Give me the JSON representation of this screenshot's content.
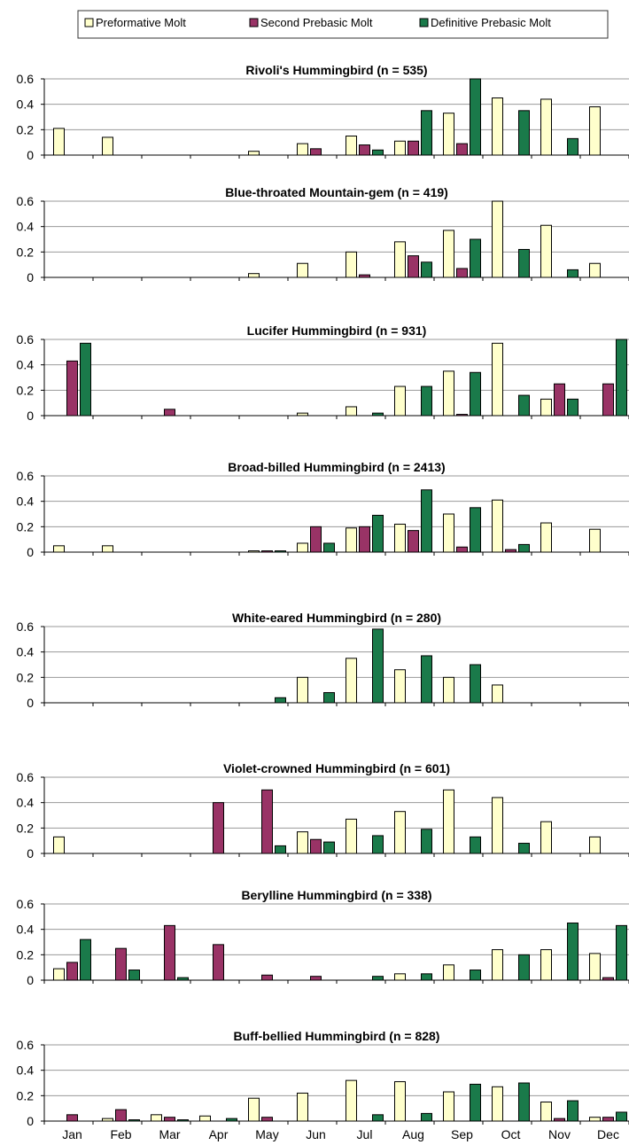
{
  "legend": {
    "items": [
      {
        "label": "Preformative Molt",
        "color": "#ffffcc"
      },
      {
        "label": "Second Prebasic Molt",
        "color": "#993366"
      },
      {
        "label": "Definitive Prebasic Molt",
        "color": "#1a7a4a"
      }
    ]
  },
  "chart_data": [
    {
      "type": "bar",
      "title": "Rivoli's Hummingbird (n = 535)",
      "categories": [
        "Jan",
        "Feb",
        "Mar",
        "Apr",
        "May",
        "Jun",
        "Jul",
        "Aug",
        "Sep",
        "Oct",
        "Nov",
        "Dec"
      ],
      "ylim": [
        0,
        0.6
      ],
      "yticks": [
        "0",
        "0.2",
        "0.4",
        "0.6"
      ],
      "series": [
        {
          "name": "Preformative Molt",
          "values": [
            0.21,
            0.14,
            0,
            0,
            0.03,
            0.09,
            0.15,
            0.11,
            0.33,
            0.45,
            0.44,
            0.38
          ]
        },
        {
          "name": "Second Prebasic Molt",
          "values": [
            0,
            0,
            0,
            0,
            0,
            0.05,
            0.08,
            0.11,
            0.09,
            0,
            0,
            0
          ]
        },
        {
          "name": "Definitive Prebasic Molt",
          "values": [
            0,
            0,
            0,
            0,
            0,
            0,
            0.04,
            0.35,
            0.6,
            0.35,
            0.13,
            0
          ]
        }
      ]
    },
    {
      "type": "bar",
      "title": "Blue-throated Mountain-gem (n = 419)",
      "categories": [
        "Jan",
        "Feb",
        "Mar",
        "Apr",
        "May",
        "Jun",
        "Jul",
        "Aug",
        "Sep",
        "Oct",
        "Nov",
        "Dec"
      ],
      "ylim": [
        0,
        0.6
      ],
      "yticks": [
        "0",
        "0.2",
        "0.4",
        "0.6"
      ],
      "series": [
        {
          "name": "Preformative Molt",
          "values": [
            0,
            0,
            0,
            0,
            0.03,
            0.11,
            0.2,
            0.28,
            0.37,
            0.6,
            0.41,
            0.11
          ]
        },
        {
          "name": "Second Prebasic Molt",
          "values": [
            0,
            0,
            0,
            0,
            0,
            0,
            0.02,
            0.17,
            0.07,
            0,
            0,
            0
          ]
        },
        {
          "name": "Definitive Prebasic Molt",
          "values": [
            0,
            0,
            0,
            0,
            0,
            0,
            0,
            0.12,
            0.3,
            0.22,
            0.06,
            0
          ]
        }
      ]
    },
    {
      "type": "bar",
      "title": "Lucifer Hummingbird (n = 931)",
      "categories": [
        "Jan",
        "Feb",
        "Mar",
        "Apr",
        "May",
        "Jun",
        "Jul",
        "Aug",
        "Sep",
        "Oct",
        "Nov",
        "Dec"
      ],
      "ylim": [
        0,
        0.6
      ],
      "yticks": [
        "0",
        "0.2",
        "0.4",
        "0.6"
      ],
      "series": [
        {
          "name": "Preformative Molt",
          "values": [
            0,
            0,
            0,
            0,
            0,
            0.02,
            0.07,
            0.23,
            0.35,
            0.57,
            0.13,
            0
          ]
        },
        {
          "name": "Second Prebasic Molt",
          "values": [
            0.43,
            0,
            0.05,
            0,
            0,
            0,
            0,
            0,
            0.01,
            0,
            0.25,
            0.25
          ]
        },
        {
          "name": "Definitive Prebasic Molt",
          "values": [
            0.57,
            0,
            0,
            0,
            0,
            0,
            0.02,
            0.23,
            0.34,
            0.16,
            0.13,
            0.6
          ]
        }
      ]
    },
    {
      "type": "bar",
      "title": "Broad-billed Hummingbird (n = 2413)",
      "categories": [
        "Jan",
        "Feb",
        "Mar",
        "Apr",
        "May",
        "Jun",
        "Jul",
        "Aug",
        "Sep",
        "Oct",
        "Nov",
        "Dec"
      ],
      "ylim": [
        0,
        0.6
      ],
      "yticks": [
        "0",
        "0.2",
        "0.4",
        "0.6"
      ],
      "series": [
        {
          "name": "Preformative Molt",
          "values": [
            0.05,
            0.05,
            0,
            0,
            0.01,
            0.07,
            0.19,
            0.22,
            0.3,
            0.41,
            0.23,
            0.18
          ]
        },
        {
          "name": "Second Prebasic Molt",
          "values": [
            0,
            0,
            0,
            0,
            0.01,
            0.2,
            0.2,
            0.17,
            0.04,
            0.02,
            0,
            0
          ]
        },
        {
          "name": "Definitive Prebasic Molt",
          "values": [
            0,
            0,
            0,
            0,
            0.01,
            0.07,
            0.29,
            0.49,
            0.35,
            0.06,
            0,
            0
          ]
        }
      ]
    },
    {
      "type": "bar",
      "title": "White-eared Hummingbird (n = 280)",
      "categories": [
        "Jan",
        "Feb",
        "Mar",
        "Apr",
        "May",
        "Jun",
        "Jul",
        "Aug",
        "Sep",
        "Oct",
        "Nov",
        "Dec"
      ],
      "ylim": [
        0,
        0.6
      ],
      "yticks": [
        "0",
        "0.2",
        "0.4",
        "0.6"
      ],
      "series": [
        {
          "name": "Preformative Molt",
          "values": [
            0,
            0,
            0,
            0,
            0,
            0.2,
            0.35,
            0.26,
            0.2,
            0.14,
            0,
            0
          ]
        },
        {
          "name": "Second Prebasic Molt",
          "values": [
            0,
            0,
            0,
            0,
            0,
            0,
            0,
            0,
            0,
            0,
            0,
            0
          ]
        },
        {
          "name": "Definitive Prebasic Molt",
          "values": [
            0,
            0,
            0,
            0,
            0.04,
            0.08,
            0.58,
            0.37,
            0.3,
            0,
            0,
            0
          ]
        }
      ]
    },
    {
      "type": "bar",
      "title": "Violet-crowned Hummingbird (n = 601)",
      "categories": [
        "Jan",
        "Feb",
        "Mar",
        "Apr",
        "May",
        "Jun",
        "Jul",
        "Aug",
        "Sep",
        "Oct",
        "Nov",
        "Dec"
      ],
      "ylim": [
        0,
        0.6
      ],
      "yticks": [
        "0",
        "0.2",
        "0.4",
        "0.6"
      ],
      "series": [
        {
          "name": "Preformative Molt",
          "values": [
            0.13,
            0,
            0,
            0,
            0,
            0.17,
            0.27,
            0.33,
            0.5,
            0.44,
            0.25,
            0.13
          ]
        },
        {
          "name": "Second Prebasic Molt",
          "values": [
            0,
            0,
            0,
            0.4,
            0.5,
            0.11,
            0,
            0,
            0,
            0,
            0,
            0
          ]
        },
        {
          "name": "Definitive Prebasic Molt",
          "values": [
            0,
            0,
            0,
            0,
            0.06,
            0.09,
            0.14,
            0.19,
            0.13,
            0.08,
            0,
            0
          ]
        }
      ]
    },
    {
      "type": "bar",
      "title": "Berylline Hummingbird (n = 338)",
      "categories": [
        "Jan",
        "Feb",
        "Mar",
        "Apr",
        "May",
        "Jun",
        "Jul",
        "Aug",
        "Sep",
        "Oct",
        "Nov",
        "Dec"
      ],
      "ylim": [
        0,
        0.6
      ],
      "yticks": [
        "0",
        "0.2",
        "0.4",
        "0.6"
      ],
      "series": [
        {
          "name": "Preformative Molt",
          "values": [
            0.09,
            0,
            0,
            0,
            0,
            0,
            0,
            0.05,
            0.12,
            0.24,
            0.24,
            0.21
          ]
        },
        {
          "name": "Second Prebasic Molt",
          "values": [
            0.14,
            0.25,
            0.43,
            0.28,
            0.04,
            0.03,
            0,
            0,
            0,
            0,
            0,
            0.02
          ]
        },
        {
          "name": "Definitive Prebasic Molt",
          "values": [
            0.32,
            0.08,
            0.02,
            0,
            0,
            0,
            0.03,
            0.05,
            0.08,
            0.2,
            0.45,
            0.43
          ]
        }
      ]
    },
    {
      "type": "bar",
      "title": "Buff-bellied Hummingbird (n = 828)",
      "categories": [
        "Jan",
        "Feb",
        "Mar",
        "Apr",
        "May",
        "Jun",
        "Jul",
        "Aug",
        "Sep",
        "Oct",
        "Nov",
        "Dec"
      ],
      "ylim": [
        0,
        0.6
      ],
      "yticks": [
        "0",
        "0.2",
        "0.4",
        "0.6"
      ],
      "series": [
        {
          "name": "Preformative Molt",
          "values": [
            0,
            0.02,
            0.05,
            0.04,
            0.18,
            0.22,
            0.32,
            0.31,
            0.23,
            0.27,
            0.15,
            0.03
          ]
        },
        {
          "name": "Second Prebasic Molt",
          "values": [
            0.05,
            0.09,
            0.03,
            0,
            0.03,
            0,
            0,
            0,
            0,
            0,
            0.02,
            0.03
          ]
        },
        {
          "name": "Definitive Prebasic Molt",
          "values": [
            0,
            0.01,
            0.01,
            0.02,
            0,
            0,
            0.05,
            0.06,
            0.29,
            0.3,
            0.16,
            0.07
          ]
        }
      ]
    }
  ]
}
